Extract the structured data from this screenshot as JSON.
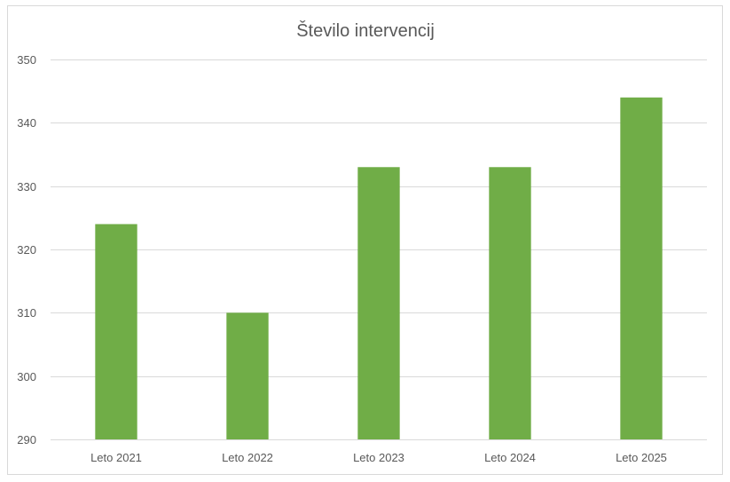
{
  "chart_data": {
    "type": "bar",
    "title": "Število intervencij",
    "xlabel": "",
    "ylabel": "",
    "categories": [
      "Leto 2021",
      "Leto 2022",
      "Leto 2023",
      "Leto 2024",
      "Leto 2025"
    ],
    "values": [
      324,
      310,
      333,
      333,
      344
    ],
    "ylim": [
      290,
      350
    ],
    "yticks": [
      290,
      300,
      310,
      320,
      330,
      340,
      350
    ],
    "grid": true,
    "legend": "none",
    "colors": {
      "bar": "#70ad47",
      "grid": "#d9d9d9",
      "text": "#595959",
      "border": "#d9d9d9"
    }
  }
}
